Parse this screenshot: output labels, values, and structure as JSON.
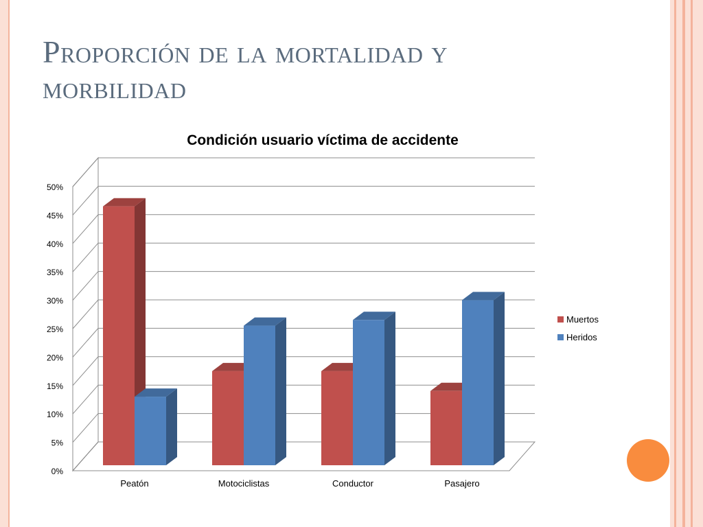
{
  "slide": {
    "title": "Proporción de la mortalidad y morbilidad"
  },
  "colors": {
    "muertos": "#c0504d",
    "heridos": "#4f81bd",
    "accent_circle": "#f98c3e"
  },
  "chart_data": {
    "type": "bar",
    "style": "3d-clustered-column",
    "title": "Condición usuario víctima de accidente",
    "categories": [
      "Peatón",
      "Motociclistas",
      "Conductor",
      "Pasajero"
    ],
    "series": [
      {
        "name": "Muertos",
        "values": [
          47.5,
          18.5,
          18.5,
          15
        ]
      },
      {
        "name": "Heridos",
        "values": [
          14,
          26.5,
          27.5,
          31
        ]
      }
    ],
    "ylim": [
      0,
      50
    ],
    "yticks": [
      "0%",
      "5%",
      "10%",
      "15%",
      "20%",
      "25%",
      "30%",
      "35%",
      "40%",
      "45%",
      "50%"
    ],
    "grid": true,
    "legend": "right"
  }
}
